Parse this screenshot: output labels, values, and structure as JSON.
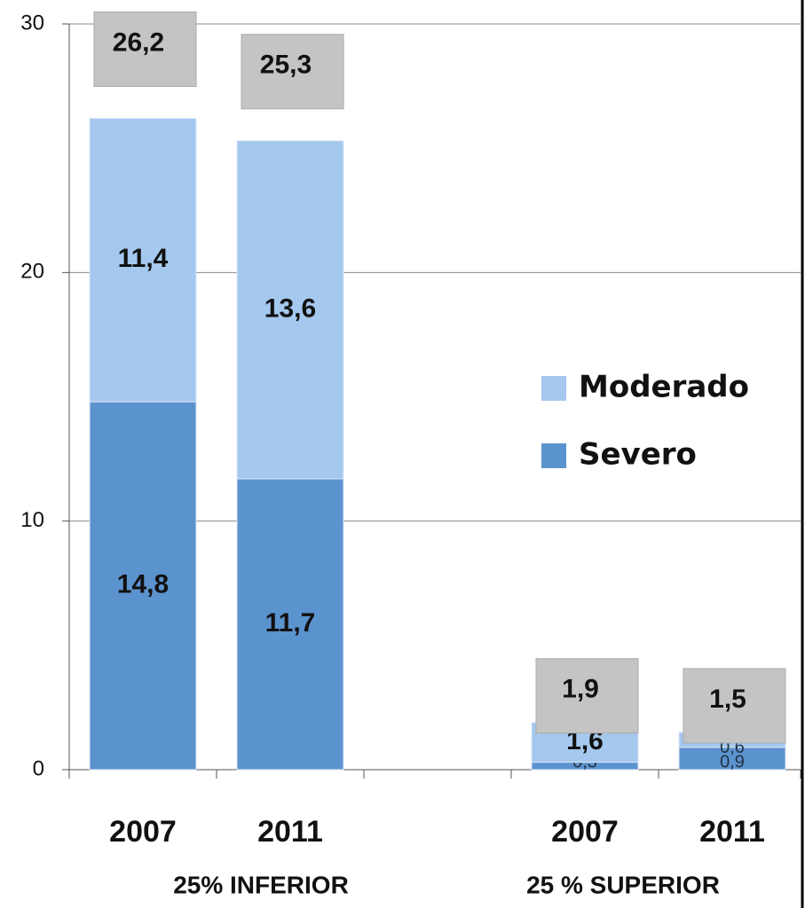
{
  "chart_data": {
    "type": "stacked_bar",
    "categories": [
      "2007",
      "2011",
      null,
      "2007",
      "2011"
    ],
    "groups": [
      "25% INFERIOR",
      "25 % SUPERIOR"
    ],
    "series": [
      {
        "name": "Severo",
        "color": "#5b93cf",
        "values": [
          14.8,
          11.7,
          null,
          0.3,
          0.9
        ],
        "value_labels": [
          "14,8",
          "11,7",
          null,
          "0,3",
          "0,9"
        ]
      },
      {
        "name": "Moderado",
        "color": "#a4c8ee",
        "values": [
          11.4,
          13.6,
          null,
          1.6,
          0.6
        ],
        "value_labels": [
          "11,4",
          "13,6",
          null,
          "1,6",
          "0,6"
        ]
      }
    ],
    "totals": [
      26.2,
      25.3,
      null,
      1.9,
      1.5
    ],
    "total_labels": [
      "26,2",
      "25,3",
      null,
      "1,9",
      "1,5"
    ],
    "ylim": [
      0,
      30
    ],
    "yticks": [
      0,
      10,
      20,
      30
    ],
    "grid": true
  }
}
